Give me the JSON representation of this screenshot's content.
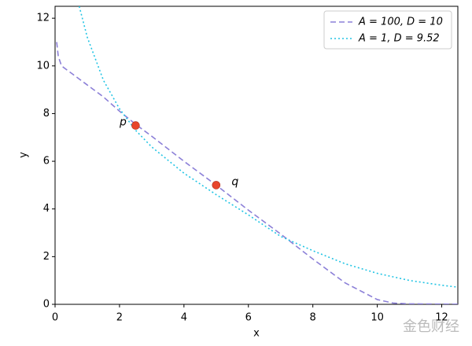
{
  "chart_data": {
    "type": "line",
    "xlabel": "x",
    "ylabel": "y",
    "x": [
      0.05,
      0.1,
      0.2,
      0.5,
      0.75,
      1,
      1.5,
      2,
      2.5,
      3,
      4,
      5,
      6,
      7,
      8,
      9,
      10,
      10.5,
      11,
      12,
      12.5
    ],
    "series": [
      {
        "name": "A = 100, D = 10",
        "color": "#8c80d8",
        "dash": "dashed",
        "values": [
          11.0,
          10.4,
          10.0,
          9.7,
          9.45,
          9.2,
          8.7,
          8.1,
          7.55,
          7.05,
          6.0,
          5.0,
          3.95,
          2.95,
          1.9,
          0.9,
          0.2,
          0.05,
          0.02,
          0.01,
          0.005
        ]
      },
      {
        "name": "A = 1, D = 9.52",
        "color": "#22c4e4",
        "dash": "dotted",
        "values": [
          null,
          null,
          null,
          null,
          12.5,
          11.2,
          9.4,
          8.2,
          7.3,
          6.6,
          5.5,
          4.6,
          3.75,
          2.85,
          2.25,
          1.7,
          1.3,
          1.15,
          1.0,
          0.8,
          0.72
        ]
      }
    ],
    "points": [
      {
        "label": "p",
        "x": 2.5,
        "y": 7.5
      },
      {
        "label": "q",
        "x": 5,
        "y": 5
      }
    ],
    "point_color": "#e8452c",
    "xlim": [
      0,
      12.5
    ],
    "ylim": [
      0,
      12.5
    ],
    "xticks": [
      0,
      2,
      4,
      6,
      8,
      10,
      12
    ],
    "yticks": [
      0,
      2,
      4,
      6,
      8,
      10,
      12
    ],
    "grid": false,
    "legend": "upper right",
    "watermark": "金色财经"
  }
}
